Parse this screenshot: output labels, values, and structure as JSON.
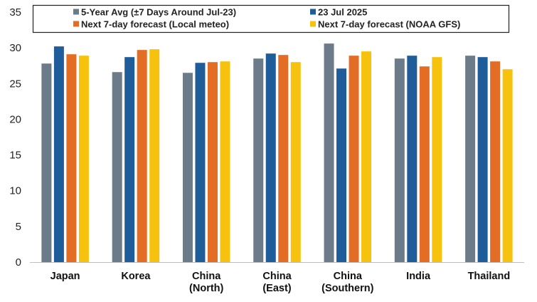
{
  "chart_data": {
    "type": "bar",
    "title": "",
    "xlabel": "",
    "ylabel": "",
    "ylim": [
      0,
      35
    ],
    "yticks": [
      0,
      5,
      10,
      15,
      20,
      25,
      30,
      35
    ],
    "grid": false,
    "legend_position": "top",
    "categories": [
      [
        "Japan"
      ],
      [
        "Korea"
      ],
      [
        "China",
        "(North)"
      ],
      [
        "China",
        "(East)"
      ],
      [
        "China",
        "(Southern)"
      ],
      [
        "India"
      ],
      [
        "Thailand"
      ]
    ],
    "series": [
      {
        "name": "5-Year Avg (±7 Days Around Jul-23)",
        "color": "#6b7b89",
        "values": [
          27.8,
          26.6,
          26.5,
          28.5,
          30.6,
          28.5,
          28.9
        ]
      },
      {
        "name": "23 Jul 2025",
        "color": "#1f5d9a",
        "values": [
          30.2,
          28.7,
          27.9,
          29.2,
          27.1,
          28.9,
          28.7
        ]
      },
      {
        "name": "Next 7-day forecast (Local meteo)",
        "color": "#e46d25",
        "values": [
          29.1,
          29.7,
          28.0,
          29.0,
          28.9,
          27.4,
          28.1
        ]
      },
      {
        "name": "Next 7-day forecast (NOAA GFS)",
        "color": "#f6c20e",
        "values": [
          28.9,
          29.8,
          28.1,
          28.0,
          29.5,
          28.7,
          27.0
        ]
      }
    ]
  }
}
